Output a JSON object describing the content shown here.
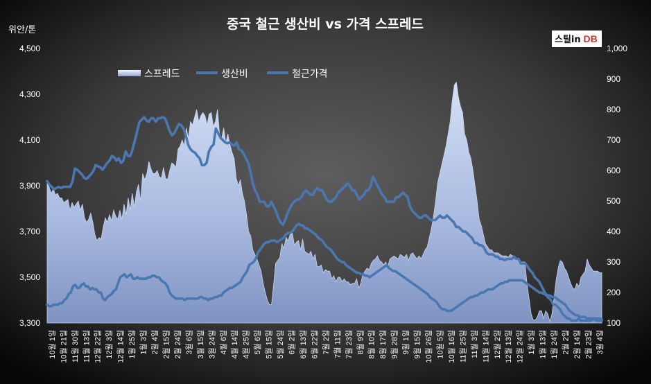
{
  "chart_data": {
    "type": "area+line",
    "title": "중국 철근 생산비 vs 가격 스프레드",
    "y_left_unit": "위안/톤",
    "y_left_ticks": [
      "3,300",
      "3,500",
      "3,700",
      "3,900",
      "4,100",
      "4,300",
      "4,500"
    ],
    "y_left_range": [
      3300,
      4500
    ],
    "y_right_ticks": [
      "100",
      "200",
      "300",
      "400",
      "500",
      "600",
      "700",
      "800",
      "900",
      "1,000"
    ],
    "y_right_range": [
      100,
      1000
    ],
    "grid": false,
    "legend_position": "top-left",
    "source_logo": {
      "part1": "스틸",
      "part2": "in",
      "part3": " DB"
    },
    "colors": {
      "background_center": "#5a5a5a",
      "background_edge": "#050505",
      "spread_fill": "#a9b9de",
      "line": "#4a77b0"
    },
    "x_labels": [
      "10월 1일",
      "10월 21일",
      "11월 30일",
      "11월 13일",
      "12월 22일",
      "12월 3일",
      "12월 14일",
      "1월 25일",
      "1월 3일",
      "2월 4일",
      "2월 15일",
      "2월 24일",
      "3월 6일",
      "3월 15일",
      "3월 24일",
      "4월 6일",
      "4월 14일",
      "4월 25일",
      "5월 6일",
      "5월 15일",
      "5월 24일",
      "6월 2일",
      "6월 13일",
      "6월 22일",
      "7월 2일",
      "7월 11일",
      "7월 23일",
      "8월 9일",
      "8월 10일",
      "8월 17일",
      "9월 28일",
      "9월 1일",
      "9월 15일",
      "10월 26일",
      "10월 5일",
      "10월 16일",
      "11월 25일",
      "11월 3일",
      "11월 14일",
      "12월 2일",
      "12월 13일",
      "12월 24일",
      "1월 3일",
      "1월 13일",
      "1월 24일",
      "2월 2일",
      "2월 14일",
      "2월 23일",
      "3월 4일"
    ],
    "series": [
      {
        "name": "스프레드",
        "kind": "area",
        "axis": "right",
        "values": [
          565,
          545,
          525,
          540,
          520,
          525,
          510,
          510,
          495,
          500,
          505,
          470,
          495,
          480,
          490,
          500,
          470,
          490,
          445,
          430,
          440,
          460,
          430,
          390,
          370,
          380,
          375,
          415,
          445,
          430,
          455,
          435,
          470,
          450,
          440,
          470,
          440,
          490,
          455,
          510,
          470,
          525,
          480,
          530,
          555,
          500,
          590,
          570,
          590,
          630,
          605,
          590,
          590,
          600,
          580,
          575,
          610,
          575,
          570,
          600,
          625,
          620,
          610,
          670,
          680,
          700,
          680,
          740,
          705,
          760,
          750,
          775,
          800,
          760,
          780,
          790,
          780,
          750,
          785,
          790,
          745,
          760,
          800,
          720,
          705,
          740,
          690,
          720,
          685,
          660,
          640,
          575,
          550,
          570,
          525,
          500,
          455,
          400,
          385,
          340,
          325,
          310,
          290,
          270,
          230,
          200,
          175,
          160,
          160,
          225,
          295,
          305,
          315,
          360,
          345,
          380,
          370,
          390,
          395,
          355,
          365,
          370,
          340,
          375,
          335,
          330,
          325,
          335,
          310,
          325,
          285,
          285,
          290,
          265,
          275,
          270,
          270,
          245,
          255,
          235,
          250,
          250,
          235,
          245,
          235,
          235,
          225,
          230,
          230,
          245,
          215,
          230,
          260,
          270,
          280,
          275,
          295,
          305,
          310,
          320,
          305,
          300,
          290,
          300,
          285,
          310,
          315,
          320,
          315,
          310,
          325,
          320,
          315,
          325,
          305,
          325,
          330,
          320,
          310,
          320,
          310,
          325,
          340,
          350,
          380,
          410,
          450,
          500,
          560,
          590,
          620,
          650,
          680,
          720,
          760,
          830,
          880,
          890,
          840,
          810,
          790,
          720,
          700,
          660,
          640,
          600,
          550,
          500,
          440,
          420,
          390,
          360,
          350,
          340,
          340,
          330,
          330,
          330,
          325,
          320,
          320,
          320,
          315,
          325,
          320,
          320,
          305,
          305,
          300,
          300,
          300,
          230,
          180,
          130,
          110,
          110,
          120,
          140,
          140,
          115,
          140,
          130,
          105,
          130,
          180,
          240,
          280,
          305,
          300,
          280,
          270,
          250,
          230,
          215,
          210,
          230,
          220,
          250,
          260,
          270,
          310,
          290,
          280,
          270,
          270,
          270,
          265,
          265
        ]
      },
      {
        "name": "생산비",
        "kind": "line",
        "axis": "left",
        "values": [
          3920,
          3905,
          3895,
          3885,
          3890,
          3895,
          3890,
          3895,
          3895,
          3895,
          3895,
          3920,
          3975,
          3970,
          3960,
          3950,
          3935,
          3930,
          3940,
          3950,
          3965,
          3990,
          3985,
          3980,
          3970,
          3985,
          4000,
          4010,
          4030,
          4025,
          4010,
          4020,
          4000,
          4010,
          4050,
          4030,
          4030,
          4060,
          4100,
          4140,
          4180,
          4190,
          4200,
          4185,
          4180,
          4195,
          4195,
          4180,
          4195,
          4195,
          4200,
          4195,
          4170,
          4140,
          4120,
          4130,
          4150,
          4170,
          4165,
          4150,
          4120,
          4080,
          4060,
          4050,
          4045,
          4030,
          4020,
          3990,
          3990,
          4000,
          4050,
          4070,
          4080,
          4150,
          4130,
          4110,
          4100,
          4090,
          4085,
          4090,
          4080,
          4075,
          4090,
          4060,
          4055,
          4040,
          4020,
          4000,
          3960,
          3910,
          3880,
          3860,
          3830,
          3830,
          3830,
          3810,
          3810,
          3830,
          3810,
          3790,
          3760,
          3740,
          3730,
          3750,
          3780,
          3800,
          3820,
          3830,
          3840,
          3840,
          3850,
          3870,
          3880,
          3870,
          3860,
          3860,
          3880,
          3890,
          3880,
          3880,
          3860,
          3840,
          3830,
          3830,
          3840,
          3850,
          3870,
          3880,
          3890,
          3900,
          3910,
          3900,
          3880,
          3880,
          3860,
          3840,
          3850,
          3860,
          3880,
          3880,
          3900,
          3940,
          3920,
          3900,
          3880,
          3860,
          3850,
          3830,
          3830,
          3830,
          3830,
          3850,
          3850,
          3860,
          3870,
          3860,
          3850,
          3810,
          3790,
          3780,
          3770,
          3760,
          3760,
          3770,
          3770,
          3760,
          3750,
          3750,
          3750,
          3760,
          3770,
          3760,
          3760,
          3770,
          3760,
          3750,
          3740,
          3720,
          3720,
          3710,
          3700,
          3700,
          3690,
          3680,
          3670,
          3650,
          3650,
          3640,
          3640,
          3630,
          3610,
          3600,
          3600,
          3600,
          3590,
          3590,
          3580,
          3580,
          3575,
          3580,
          3580,
          3580,
          3590,
          3580,
          3580,
          3560,
          3560,
          3560,
          3545,
          3530,
          3520,
          3500,
          3490,
          3480,
          3460,
          3440,
          3420,
          3410,
          3400,
          3380,
          3380,
          3370,
          3360,
          3340,
          3330,
          3320,
          3320,
          3310,
          3310,
          3310,
          3320,
          3310,
          3310,
          3310,
          3310,
          3310,
          3315,
          3315,
          3310,
          3310,
          3310
        ]
      },
      {
        "name": "철근가격",
        "kind": "line",
        "axis": "right",
        "values": [
          160,
          155,
          155,
          160,
          160,
          160,
          165,
          165,
          175,
          180,
          195,
          200,
          220,
          225,
          215,
          215,
          225,
          230,
          220,
          220,
          210,
          215,
          210,
          210,
          200,
          200,
          180,
          175,
          185,
          190,
          195,
          205,
          210,
          230,
          250,
          255,
          260,
          250,
          255,
          260,
          245,
          245,
          250,
          245,
          245,
          245,
          245,
          250,
          250,
          255,
          255,
          250,
          250,
          240,
          235,
          230,
          220,
          200,
          190,
          185,
          180,
          180,
          180,
          180,
          175,
          180,
          180,
          180,
          180,
          180,
          180,
          185,
          185,
          180,
          180,
          175,
          180,
          180,
          185,
          185,
          190,
          190,
          200,
          205,
          210,
          215,
          215,
          220,
          225,
          230,
          235,
          250,
          260,
          270,
          290,
          295,
          300,
          310,
          330,
          340,
          350,
          360,
          365,
          365,
          370,
          370,
          370,
          365,
          370,
          375,
          380,
          390,
          395,
          395,
          400,
          410,
          420,
          425,
          420,
          420,
          410,
          410,
          405,
          400,
          395,
          390,
          380,
          375,
          370,
          360,
          350,
          345,
          340,
          330,
          320,
          310,
          305,
          300,
          300,
          290,
          285,
          280,
          275,
          270,
          265,
          265,
          260,
          260,
          255,
          255,
          250,
          255,
          260,
          265,
          270,
          275,
          280,
          285,
          290,
          280,
          275,
          270,
          270,
          265,
          260,
          255,
          250,
          245,
          240,
          235,
          230,
          225,
          220,
          215,
          210,
          205,
          200,
          195,
          185,
          180,
          175,
          170,
          160,
          150,
          145,
          145,
          140,
          140,
          140,
          145,
          150,
          155,
          160,
          165,
          170,
          175,
          180,
          185,
          185,
          190,
          190,
          195,
          200,
          200,
          205,
          210,
          210,
          210,
          215,
          220,
          225,
          230,
          230,
          235,
          235,
          240,
          240,
          240,
          240,
          240,
          240,
          240,
          235,
          230,
          225,
          220,
          215,
          210,
          205,
          200,
          200,
          195,
          195,
          190,
          190,
          185,
          185,
          180,
          175,
          170,
          165,
          160,
          150,
          140,
          135,
          130,
          125,
          125,
          120,
          120,
          120,
          115,
          115,
          115,
          115,
          115,
          115,
          115,
          112
        ]
      }
    ]
  }
}
